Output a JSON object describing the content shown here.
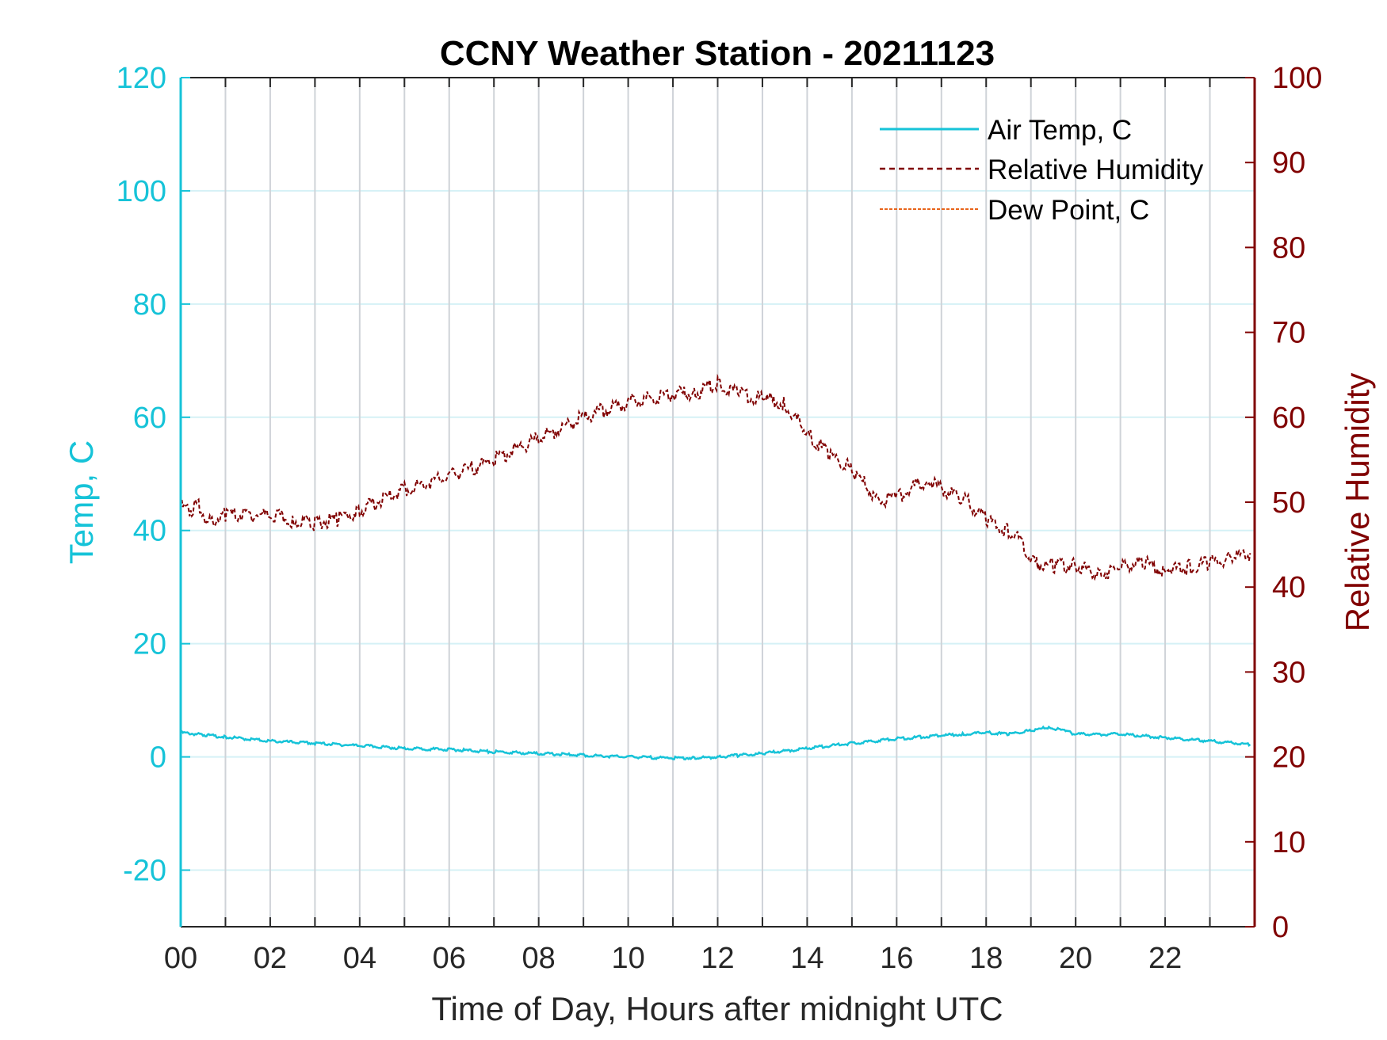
{
  "chart_data": {
    "type": "line",
    "title": "CCNY Weather Station - 20211123",
    "xlabel": "Time of Day, Hours after midnight UTC",
    "ylabel_left": "Temp, C",
    "ylabel_right": "Relative Humidity",
    "xlim": [
      0,
      24
    ],
    "ylim_left": [
      -30,
      120
    ],
    "ylim_right": [
      0,
      100
    ],
    "x_ticks": [
      "00",
      "02",
      "04",
      "06",
      "08",
      "10",
      "12",
      "14",
      "16",
      "18",
      "20",
      "22"
    ],
    "x_tick_values": [
      0,
      2,
      4,
      6,
      8,
      10,
      12,
      14,
      16,
      18,
      20,
      22
    ],
    "y_left_ticks": [
      "-20",
      "0",
      "20",
      "40",
      "60",
      "80",
      "100",
      "120"
    ],
    "y_left_tick_values": [
      -20,
      0,
      20,
      40,
      60,
      80,
      100,
      120
    ],
    "y_right_ticks": [
      "0",
      "10",
      "20",
      "30",
      "40",
      "50",
      "60",
      "70",
      "80",
      "90",
      "100"
    ],
    "y_right_tick_values": [
      0,
      10,
      20,
      30,
      40,
      50,
      60,
      70,
      80,
      90,
      100
    ],
    "grid": true,
    "legend_position": "top-right",
    "colors": {
      "temp": "#16c3d8",
      "humidity": "#800000",
      "dewpoint": "#e8641b",
      "left_axis": "#16c3d8",
      "right_axis": "#800000",
      "grid_vertical": "#cfd3d8",
      "grid_horizontal": "#d5f1f6",
      "frame": "#262626"
    },
    "series": [
      {
        "name": "Air Temp, C",
        "axis": "left",
        "style": "solid",
        "x": [
          0,
          0.5,
          1,
          2,
          3,
          4,
          5,
          6,
          7,
          8,
          9,
          10,
          11,
          11.5,
          12,
          12.5,
          13,
          14,
          15,
          16,
          17,
          17.5,
          18,
          18.5,
          19,
          19.4,
          19.8,
          20,
          21,
          22,
          23,
          23.9
        ],
        "values": [
          4.3,
          3.9,
          3.5,
          2.8,
          2.4,
          2.0,
          1.5,
          1.3,
          0.9,
          0.6,
          0.3,
          0.0,
          -0.2,
          -0.2,
          0.0,
          0.3,
          0.6,
          1.5,
          2.4,
          3.2,
          3.8,
          4.0,
          4.3,
          4.0,
          4.7,
          5.2,
          4.5,
          4.0,
          4.0,
          3.4,
          2.8,
          2.2
        ]
      },
      {
        "name": "Relative Humidity",
        "axis": "right",
        "style": "dashed",
        "x": [
          0,
          0.2,
          0.4,
          0.6,
          1,
          2,
          2.5,
          3,
          3.5,
          4,
          5,
          6,
          7,
          8,
          9,
          10,
          11,
          11.5,
          12,
          12.5,
          13,
          13.5,
          14,
          14.5,
          15,
          15.6,
          16,
          16.3,
          16.7,
          17,
          17.5,
          18,
          18.5,
          18.8,
          19,
          19.5,
          20,
          20.5,
          21,
          21.5,
          22,
          22.5,
          23,
          23.5,
          23.9
        ],
        "values": [
          49.5,
          49.0,
          49.8,
          47.5,
          48.5,
          48.5,
          47.8,
          47.5,
          48.0,
          49.0,
          51.5,
          53.0,
          55.0,
          57.5,
          60.0,
          61.8,
          62.8,
          62.7,
          64.0,
          62.7,
          62.3,
          61.5,
          58.0,
          55.5,
          54.0,
          50.0,
          50.5,
          51.5,
          52.5,
          51.5,
          50.5,
          48.0,
          46.5,
          45.5,
          43.0,
          42.5,
          42.5,
          41.5,
          42.3,
          43.0,
          42.0,
          42.3,
          43.0,
          43.5,
          44.0
        ]
      },
      {
        "name": "Dew Point, C",
        "axis": "left",
        "style": "dashed",
        "x": [],
        "values": []
      }
    ]
  }
}
